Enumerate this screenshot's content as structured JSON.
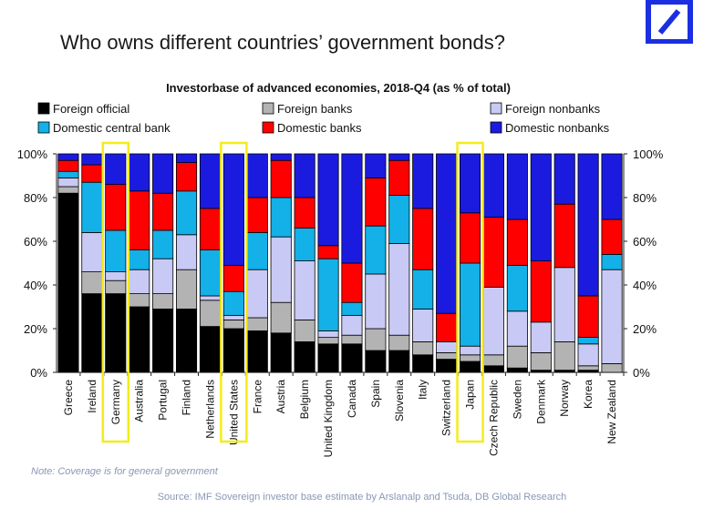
{
  "header": {
    "title": "Who owns different countries’ government bonds?"
  },
  "brand": {
    "logo_icon": "deutsche-bank-slash-square-logo",
    "color": "#1b2fe0"
  },
  "footer": {
    "note": "Note: Coverage is for general government",
    "source": "Source: IMF Sovereign investor base estimate by Arslanalp and Tsuda, DB Global Research"
  },
  "chart_data": {
    "type": "bar",
    "stacked": true,
    "title": "Investorbase of advanced economies, 2018-Q4 (as % of total)",
    "xlabel": "",
    "ylabel": "",
    "ylim": [
      0,
      100
    ],
    "yticks": [
      "0%",
      "20%",
      "40%",
      "60%",
      "80%",
      "100%"
    ],
    "y_axis_both_sides": true,
    "grid": false,
    "legend_position": "top",
    "categories": [
      "Greece",
      "Ireland",
      "Germany",
      "Australia",
      "Portugal",
      "Finland",
      "Netherlands",
      "United States",
      "France",
      "Austria",
      "Belgium",
      "United Kingdom",
      "Canada",
      "Spain",
      "Slovenia",
      "Italy",
      "Switzerland",
      "Japan",
      "Czech Republic",
      "Sweden",
      "Denmark",
      "Norway",
      "Korea",
      "New Zealand"
    ],
    "highlighted": [
      "Germany",
      "United States",
      "Japan"
    ],
    "highlight_color": "#f4ec1a",
    "series": [
      {
        "name": "Foreign official",
        "color": "#000000",
        "values": [
          82,
          36,
          36,
          30,
          29,
          29,
          21,
          20,
          19,
          18,
          14,
          13,
          13,
          10,
          10,
          8,
          6,
          5,
          3,
          2,
          1,
          1,
          1,
          0
        ]
      },
      {
        "name": "Foreign banks",
        "color": "#b3b3b3",
        "values": [
          3,
          10,
          6,
          6,
          7,
          18,
          12,
          4,
          6,
          14,
          10,
          3,
          4,
          10,
          7,
          6,
          3,
          3,
          5,
          10,
          8,
          13,
          2,
          4
        ]
      },
      {
        "name": "Foreign nonbanks",
        "color": "#c9c9f5",
        "values": [
          4,
          18,
          4,
          11,
          16,
          16,
          2,
          2,
          22,
          30,
          27,
          3,
          9,
          25,
          42,
          15,
          5,
          4,
          31,
          16,
          14,
          34,
          10,
          43
        ]
      },
      {
        "name": "Domestic central bank",
        "color": "#14b0e8",
        "values": [
          3,
          23,
          19,
          9,
          13,
          20,
          21,
          11,
          17,
          18,
          15,
          33,
          6,
          22,
          22,
          18,
          0,
          38,
          0,
          21,
          0,
          0,
          3,
          7
        ]
      },
      {
        "name": "Domestic banks",
        "color": "#ff0000",
        "values": [
          5,
          8,
          21,
          27,
          17,
          13,
          19,
          12,
          16,
          17,
          14,
          6,
          18,
          22,
          16,
          28,
          13,
          23,
          32,
          21,
          28,
          29,
          19,
          16
        ]
      },
      {
        "name": "Domestic nonbanks",
        "color": "#1b1be0",
        "values": [
          3,
          5,
          14,
          17,
          18,
          4,
          25,
          51,
          20,
          3,
          20,
          42,
          50,
          11,
          3,
          25,
          73,
          27,
          29,
          30,
          49,
          23,
          65,
          30
        ]
      }
    ]
  }
}
